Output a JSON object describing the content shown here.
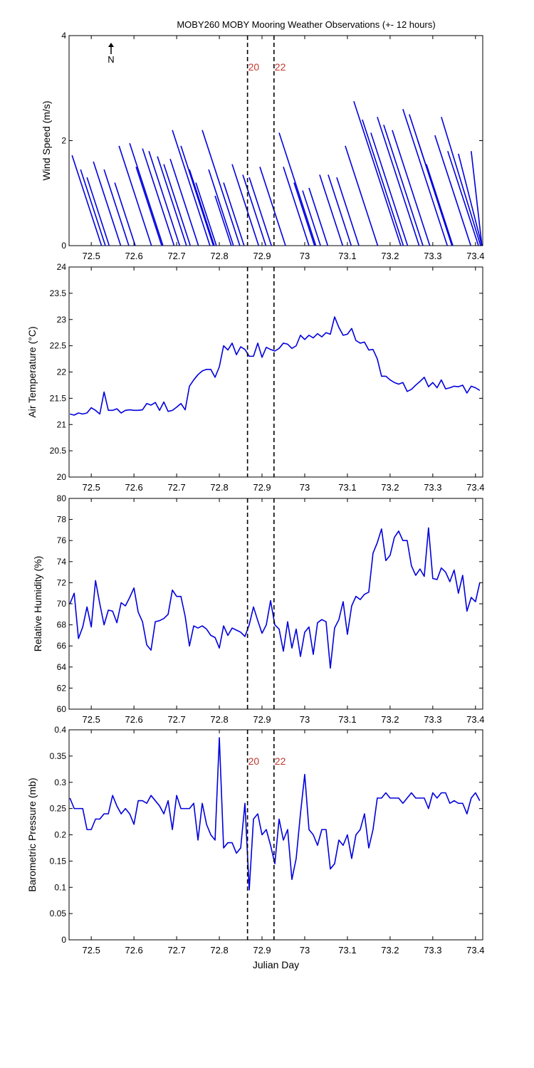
{
  "title": "MOBY260 MOBY Mooring Weather Observations (+- 12 hours)",
  "chart_data": [
    {
      "type": "stick",
      "ylabel": "Wind Speed (m/s)",
      "color": "#0000dd",
      "xlim": [
        72.448,
        73.417
      ],
      "xticks": [
        72.5,
        72.6,
        72.7,
        72.8,
        72.9,
        73,
        73.1,
        73.2,
        73.3,
        73.4
      ],
      "ylim": [
        0,
        4
      ],
      "yticks": [
        0,
        2,
        4
      ],
      "north_label": "N",
      "vlines": [
        72.866,
        72.928
      ],
      "vline_labels": [
        "20",
        "22"
      ],
      "vline_label_color": "#c0392b",
      "x": [
        72.524,
        72.533,
        72.542,
        72.569,
        72.588,
        72.603,
        72.641,
        72.668,
        72.665,
        72.694,
        72.707,
        72.723,
        72.732,
        72.751,
        72.778,
        72.786,
        72.788,
        72.793,
        72.848,
        72.833,
        72.828,
        72.858,
        72.892,
        72.909,
        72.922,
        72.955,
        73.026,
        73.01,
        73.023,
        73.037,
        73.054,
        73.089,
        73.109,
        73.127,
        73.171,
        73.225,
        73.231,
        73.241,
        73.268,
        73.277,
        73.293,
        73.334,
        73.345,
        73.345,
        73.347,
        73.389,
        73.412,
        73.407,
        73.415,
        73.415
      ],
      "tip_x": [
        72.455,
        72.475,
        72.49,
        72.505,
        72.53,
        72.555,
        72.565,
        72.59,
        72.605,
        72.62,
        72.635,
        72.655,
        72.67,
        72.685,
        72.69,
        72.71,
        72.73,
        72.745,
        72.76,
        72.775,
        72.79,
        72.81,
        72.83,
        72.855,
        72.87,
        72.895,
        72.94,
        72.95,
        72.975,
        72.995,
        73.01,
        73.035,
        73.055,
        73.075,
        73.095,
        73.115,
        73.135,
        73.155,
        73.17,
        73.185,
        73.205,
        73.23,
        73.245,
        73.265,
        73.285,
        73.305,
        73.32,
        73.335,
        73.36,
        73.39
      ],
      "values": [
        1.72,
        1.45,
        1.3,
        1.6,
        1.45,
        1.2,
        1.9,
        1.95,
        1.5,
        1.85,
        1.8,
        1.7,
        1.55,
        1.65,
        2.2,
        1.9,
        1.45,
        1.2,
        2.2,
        1.45,
        0.95,
        1.2,
        1.55,
        1.35,
        1.3,
        1.5,
        2.15,
        1.5,
        1.2,
        1.05,
        1.1,
        1.35,
        1.35,
        1.3,
        1.9,
        2.75,
        2.4,
        2.15,
        2.45,
        2.3,
        2.2,
        2.6,
        2.5,
        2.0,
        1.55,
        2.1,
        2.45,
        1.8,
        1.75,
        1.8
      ]
    },
    {
      "type": "line",
      "ylabel": "Air Temperature (°C)",
      "color": "#0000dd",
      "xlim": [
        72.448,
        73.417
      ],
      "xticks": [
        72.5,
        72.6,
        72.7,
        72.8,
        72.9,
        73,
        73.1,
        73.2,
        73.3,
        73.4
      ],
      "ylim": [
        20,
        24
      ],
      "yticks": [
        20,
        20.5,
        21,
        21.5,
        22,
        22.5,
        23,
        23.5,
        24
      ],
      "vlines": [
        72.866,
        72.928
      ],
      "x": [
        72.45,
        72.46,
        72.47,
        72.48,
        72.49,
        72.5,
        72.51,
        72.52,
        72.53,
        72.54,
        72.55,
        72.56,
        72.57,
        72.58,
        72.59,
        72.6,
        72.61,
        72.62,
        72.63,
        72.64,
        72.65,
        72.66,
        72.67,
        72.68,
        72.69,
        72.7,
        72.71,
        72.72,
        72.73,
        72.74,
        72.75,
        72.76,
        72.77,
        72.78,
        72.79,
        72.8,
        72.81,
        72.82,
        72.83,
        72.84,
        72.85,
        72.86,
        72.87,
        72.88,
        72.89,
        72.9,
        72.91,
        72.92,
        72.93,
        72.94,
        72.95,
        72.96,
        72.97,
        72.98,
        72.99,
        73,
        73.01,
        73.02,
        73.03,
        73.04,
        73.05,
        73.06,
        73.07,
        73.08,
        73.09,
        73.1,
        73.11,
        73.12,
        73.13,
        73.14,
        73.15,
        73.16,
        73.17,
        73.18,
        73.19,
        73.2,
        73.21,
        73.22,
        73.23,
        73.24,
        73.25,
        73.26,
        73.27,
        73.28,
        73.29,
        73.3,
        73.31,
        73.32,
        73.33,
        73.34,
        73.35,
        73.36,
        73.37,
        73.38,
        73.39,
        73.4,
        73.41
      ],
      "values": [
        21.2,
        21.18,
        21.22,
        21.2,
        21.22,
        21.32,
        21.27,
        21.2,
        21.62,
        21.27,
        21.27,
        21.3,
        21.22,
        21.27,
        21.28,
        21.27,
        21.27,
        21.28,
        21.4,
        21.37,
        21.42,
        21.27,
        21.43,
        21.25,
        21.27,
        21.33,
        21.4,
        21.28,
        21.73,
        21.85,
        21.95,
        22.02,
        22.05,
        22.05,
        21.9,
        22.1,
        22.5,
        22.42,
        22.55,
        22.33,
        22.48,
        22.43,
        22.3,
        22.3,
        22.55,
        22.28,
        22.47,
        22.43,
        22.4,
        22.45,
        22.55,
        22.53,
        22.45,
        22.5,
        22.7,
        22.62,
        22.7,
        22.65,
        22.73,
        22.67,
        22.75,
        22.72,
        23.05,
        22.85,
        22.7,
        22.72,
        22.83,
        22.6,
        22.55,
        22.57,
        22.42,
        22.43,
        22.25,
        21.92,
        21.92,
        21.85,
        21.8,
        21.77,
        21.8,
        21.63,
        21.67,
        21.75,
        21.82,
        21.9,
        21.72,
        21.8,
        21.7,
        21.85,
        21.68,
        21.7,
        21.73,
        21.72,
        21.75,
        21.6,
        21.73,
        21.7,
        21.65
      ]
    },
    {
      "type": "line",
      "ylabel": "Relative Humidity (%)",
      "color": "#0000dd",
      "xlim": [
        72.448,
        73.417
      ],
      "xticks": [
        72.5,
        72.6,
        72.7,
        72.8,
        72.9,
        73,
        73.1,
        73.2,
        73.3,
        73.4
      ],
      "ylim": [
        60,
        80
      ],
      "yticks": [
        60,
        62,
        64,
        66,
        68,
        70,
        72,
        74,
        76,
        78,
        80
      ],
      "vlines": [
        72.866,
        72.928
      ],
      "x": [
        72.45,
        72.46,
        72.47,
        72.48,
        72.49,
        72.5,
        72.51,
        72.52,
        72.53,
        72.54,
        72.55,
        72.56,
        72.57,
        72.58,
        72.59,
        72.6,
        72.61,
        72.62,
        72.63,
        72.64,
        72.65,
        72.66,
        72.67,
        72.68,
        72.69,
        72.7,
        72.71,
        72.72,
        72.73,
        72.74,
        72.75,
        72.76,
        72.77,
        72.78,
        72.79,
        72.8,
        72.81,
        72.82,
        72.83,
        72.84,
        72.85,
        72.86,
        72.87,
        72.88,
        72.89,
        72.9,
        72.91,
        72.92,
        72.93,
        72.94,
        72.95,
        72.96,
        72.97,
        72.98,
        72.99,
        73,
        73.01,
        73.02,
        73.03,
        73.04,
        73.05,
        73.06,
        73.07,
        73.08,
        73.09,
        73.1,
        73.11,
        73.12,
        73.13,
        73.14,
        73.15,
        73.16,
        73.17,
        73.18,
        73.19,
        73.2,
        73.21,
        73.22,
        73.23,
        73.24,
        73.25,
        73.26,
        73.27,
        73.28,
        73.29,
        73.3,
        73.31,
        73.32,
        73.33,
        73.34,
        73.35,
        73.36,
        73.37,
        73.38,
        73.39,
        73.4,
        73.41
      ],
      "values": [
        70,
        71,
        66.7,
        67.8,
        69.7,
        67.8,
        72.2,
        70,
        68,
        69.4,
        69.3,
        68.2,
        70.1,
        69.8,
        70.6,
        71.5,
        69.2,
        68.3,
        66.1,
        65.6,
        68.3,
        68.4,
        68.6,
        69,
        71.3,
        70.7,
        70.7,
        68.8,
        66,
        67.9,
        67.7,
        67.9,
        67.6,
        67,
        66.8,
        65.8,
        67.9,
        67,
        67.7,
        67.5,
        67.3,
        66.9,
        68,
        69.7,
        68.4,
        67.2,
        68,
        70.3,
        68,
        67.6,
        65.5,
        68.3,
        65.8,
        67.6,
        65,
        67.3,
        67.8,
        65.2,
        68.2,
        68.5,
        68.3,
        63.9,
        67.7,
        68.5,
        70.2,
        67.1,
        69.8,
        70.7,
        70.4,
        70.9,
        71.1,
        74.8,
        75.8,
        77.1,
        74.1,
        74.6,
        76.3,
        76.9,
        76,
        76,
        73.6,
        72.7,
        73.3,
        72.6,
        77.2,
        72.4,
        72.3,
        73.4,
        73,
        72.1,
        73.2,
        71,
        72.7,
        69.3,
        70.6,
        70.2,
        72
      ]
    },
    {
      "type": "line",
      "ylabel": "Barometric Pressure (mb)",
      "xlabel": "Julian Day",
      "color": "#0000dd",
      "xlim": [
        72.448,
        73.417
      ],
      "xticks": [
        72.5,
        72.6,
        72.7,
        72.8,
        72.9,
        73,
        73.1,
        73.2,
        73.3,
        73.4
      ],
      "ylim": [
        0,
        0.4
      ],
      "yticks": [
        0,
        0.05,
        0.1,
        0.15,
        0.2,
        0.25,
        0.3,
        0.35,
        0.4
      ],
      "vlines": [
        72.866,
        72.928
      ],
      "vline_labels": [
        "20",
        "22"
      ],
      "vline_label_color": "#c0392b",
      "x": [
        72.45,
        72.46,
        72.47,
        72.48,
        72.49,
        72.5,
        72.51,
        72.52,
        72.53,
        72.54,
        72.55,
        72.56,
        72.57,
        72.58,
        72.59,
        72.6,
        72.61,
        72.62,
        72.63,
        72.64,
        72.65,
        72.66,
        72.67,
        72.68,
        72.69,
        72.7,
        72.71,
        72.72,
        72.73,
        72.74,
        72.75,
        72.76,
        72.77,
        72.78,
        72.79,
        72.8,
        72.81,
        72.82,
        72.83,
        72.84,
        72.85,
        72.86,
        72.87,
        72.88,
        72.89,
        72.9,
        72.91,
        72.92,
        72.93,
        72.94,
        72.95,
        72.96,
        72.97,
        72.98,
        72.99,
        73,
        73.01,
        73.02,
        73.03,
        73.04,
        73.05,
        73.06,
        73.07,
        73.08,
        73.09,
        73.1,
        73.11,
        73.12,
        73.13,
        73.14,
        73.15,
        73.16,
        73.17,
        73.18,
        73.19,
        73.2,
        73.21,
        73.22,
        73.23,
        73.24,
        73.25,
        73.26,
        73.27,
        73.28,
        73.29,
        73.3,
        73.31,
        73.32,
        73.33,
        73.34,
        73.35,
        73.36,
        73.37,
        73.38,
        73.39,
        73.4,
        73.41
      ],
      "values": [
        0.27,
        0.25,
        0.25,
        0.25,
        0.21,
        0.21,
        0.23,
        0.23,
        0.24,
        0.24,
        0.275,
        0.255,
        0.24,
        0.25,
        0.24,
        0.22,
        0.265,
        0.265,
        0.26,
        0.275,
        0.265,
        0.255,
        0.24,
        0.265,
        0.21,
        0.275,
        0.25,
        0.25,
        0.25,
        0.26,
        0.19,
        0.26,
        0.22,
        0.2,
        0.19,
        0.385,
        0.175,
        0.185,
        0.185,
        0.165,
        0.175,
        0.26,
        0.095,
        0.23,
        0.24,
        0.2,
        0.21,
        0.18,
        0.145,
        0.23,
        0.19,
        0.21,
        0.115,
        0.155,
        0.24,
        0.315,
        0.21,
        0.2,
        0.18,
        0.21,
        0.21,
        0.135,
        0.145,
        0.19,
        0.18,
        0.2,
        0.155,
        0.2,
        0.21,
        0.24,
        0.175,
        0.21,
        0.27,
        0.27,
        0.28,
        0.27,
        0.27,
        0.27,
        0.26,
        0.27,
        0.28,
        0.27,
        0.27,
        0.27,
        0.25,
        0.28,
        0.27,
        0.28,
        0.28,
        0.26,
        0.265,
        0.26,
        0.26,
        0.24,
        0.27,
        0.28,
        0.265
      ]
    }
  ]
}
